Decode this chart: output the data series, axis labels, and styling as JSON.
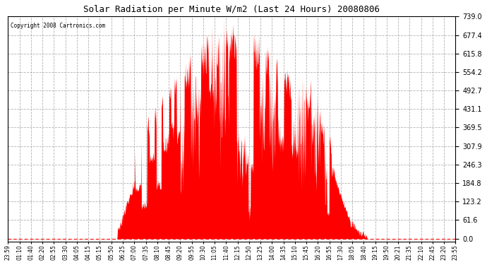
{
  "title": "Solar Radiation per Minute W/m2 (Last 24 Hours) 20080806",
  "copyright_text": "Copyright 2008 Cartronics.com",
  "y_max": 739.0,
  "y_min": 0.0,
  "y_ticks": [
    0.0,
    61.6,
    123.2,
    184.8,
    246.3,
    307.9,
    369.5,
    431.1,
    492.7,
    554.2,
    615.8,
    677.4,
    739.0
  ],
  "bar_color": "#FF0000",
  "bg_color": "#FFFFFF",
  "plot_bg_color": "#FFFFFF",
  "grid_color": "#AAAAAA",
  "dashed_line_color": "#FF0000",
  "x_tick_labels": [
    "23:59",
    "01:10",
    "01:40",
    "02:20",
    "02:55",
    "03:30",
    "04:05",
    "04:15",
    "05:15",
    "05:50",
    "06:25",
    "07:00",
    "07:35",
    "08:10",
    "08:45",
    "09:20",
    "09:55",
    "10:30",
    "11:05",
    "11:40",
    "12:15",
    "12:50",
    "13:25",
    "14:00",
    "14:35",
    "15:10",
    "15:45",
    "16:20",
    "16:55",
    "17:30",
    "18:05",
    "18:40",
    "19:15",
    "19:50",
    "20:21",
    "21:35",
    "22:10",
    "22:45",
    "23:20",
    "23:55"
  ],
  "num_points": 1440,
  "figsize": [
    6.9,
    3.75
  ],
  "dpi": 100
}
